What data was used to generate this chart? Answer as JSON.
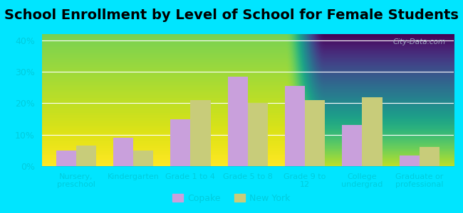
{
  "title": "School Enrollment by Level of School for Female Students",
  "categories": [
    "Nursery,\npreschool",
    "Kindergarten",
    "Grade 1 to 4",
    "Grade 5 to 8",
    "Grade 9 to\n12",
    "College\nundergrad",
    "Graduate or\nprofessional"
  ],
  "copake": [
    5,
    9,
    15,
    28.5,
    25.5,
    13,
    3.5
  ],
  "new_york": [
    6.5,
    5,
    21,
    20,
    21,
    22,
    6
  ],
  "copake_color": "#c9a0dc",
  "new_york_color": "#c8cc7a",
  "background_outer": "#00e5ff",
  "ylim": [
    0,
    42
  ],
  "yticks": [
    0,
    10,
    20,
    30,
    40
  ],
  "ytick_labels": [
    "0%",
    "10%",
    "20%",
    "30%",
    "40%"
  ],
  "bar_width": 0.35,
  "title_fontsize": 14,
  "legend_copake": "Copake",
  "legend_newyork": "New York",
  "tick_color": "#00ccdd",
  "label_color": "#00ccdd",
  "grid_color": "#ccddcc"
}
